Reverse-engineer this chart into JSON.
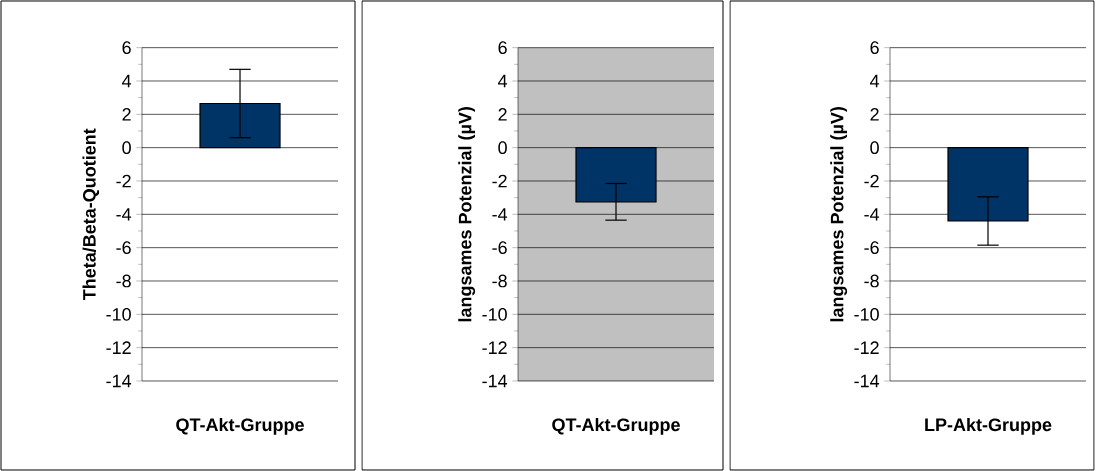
{
  "chart_data": [
    {
      "type": "bar",
      "ylabel": "Theta/Beta-Quotient",
      "xlabel": "QT-Akt-Gruppe",
      "categories": [
        null
      ],
      "values": [
        2.65
      ],
      "errors": [
        2.05
      ],
      "color": "#003366",
      "ylim": [
        -14,
        6
      ],
      "yticks": [
        -14,
        -12,
        -10,
        -8,
        -6,
        -4,
        -2,
        0,
        2,
        4,
        6
      ],
      "grid": "y"
    },
    {
      "type": "bar",
      "ylabel": "langsames Potenzial (µV)",
      "xlabel": "QT-Akt-Gruppe",
      "categories": [
        null
      ],
      "values": [
        -3.25
      ],
      "errors": [
        1.1
      ],
      "color": "#003366",
      "ylim": [
        -14,
        6
      ],
      "yticks": [
        -14,
        -12,
        -10,
        -8,
        -6,
        -4,
        -2,
        0,
        2,
        4,
        6
      ],
      "grid": "y"
    },
    {
      "type": "bar",
      "ylabel": "langsames Potenzial (µV)",
      "xlabel": "LP-Akt-Gruppe",
      "categories": [
        null
      ],
      "values": [
        -4.4
      ],
      "errors": [
        1.45
      ],
      "color": "#003366",
      "ylim": [
        -14,
        6
      ],
      "yticks": [
        -14,
        -12,
        -10,
        -8,
        -6,
        -4,
        -2,
        0,
        2,
        4,
        6
      ],
      "grid": "y"
    }
  ]
}
